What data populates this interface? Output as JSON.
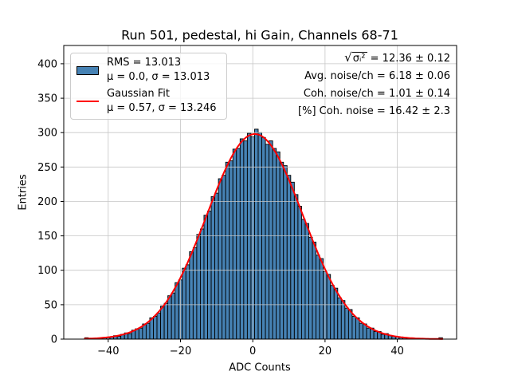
{
  "chart_data": {
    "type": "bar",
    "subtype": "histogram-with-gaussian-fit",
    "title": "Run 501, pedestal, hi Gain, Channels 68-71",
    "xlabel": "ADC Counts",
    "ylabel": "Entries",
    "xlim": [
      -52.3,
      56.4
    ],
    "ylim": [
      0,
      426.6
    ],
    "grid": true,
    "grid_color": "#c6c6c6",
    "background": "#ffffff",
    "legend_position": "upper left",
    "xticks": {
      "values": [
        -40,
        -20,
        0,
        20,
        40
      ],
      "labels": [
        "−40",
        "−20",
        "0",
        "20",
        "40"
      ]
    },
    "yticks": {
      "values": [
        0,
        50,
        100,
        150,
        200,
        250,
        300,
        350,
        400
      ],
      "labels": [
        "0",
        "50",
        "100",
        "150",
        "200",
        "250",
        "300",
        "350",
        "400"
      ]
    },
    "histogram": {
      "bin_start": -46,
      "bin_width": 1,
      "fill_color": "#4682b4",
      "edge_color": "#000000",
      "counts": [
        2,
        0,
        0,
        1,
        1,
        2,
        2,
        3,
        5,
        4,
        7,
        9,
        8,
        13,
        15,
        16,
        22,
        23,
        31,
        33,
        38,
        48,
        52,
        63,
        67,
        82,
        86,
        103,
        108,
        127,
        133,
        152,
        160,
        180,
        186,
        207,
        212,
        233,
        238,
        257,
        259,
        276,
        277,
        291,
        288,
        299,
        294,
        305,
        300,
        293,
        283,
        288,
        277,
        272,
        257,
        252,
        238,
        228,
        210,
        193,
        174,
        168,
        148,
        141,
        122,
        117,
        98,
        94,
        78,
        74,
        60,
        56,
        45,
        43,
        33,
        31,
        23,
        22,
        16,
        16,
        11,
        11,
        7,
        8,
        5,
        4,
        3,
        3,
        2,
        1,
        1,
        1,
        0,
        0,
        0,
        0,
        0,
        0,
        2
      ]
    },
    "gaussian_fit": {
      "amplitude": 298,
      "mu": 0.57,
      "sigma": 13.246,
      "color": "#ff0000",
      "line_width": 2,
      "x_range": [
        -46.5,
        52.5
      ]
    },
    "stats": {
      "rms": 13.013,
      "hist_mu": 0.0,
      "hist_sigma": 13.013,
      "fit_mu": 0.57,
      "fit_sigma": 13.246,
      "sqrt_sigma_i_squared": "12.36 ± 0.12",
      "avg_noise_per_ch": "6.18 ± 0.06",
      "coh_noise_per_ch": "1.01 ± 0.14",
      "pct_coh_noise": "16.42 ± 2.3"
    }
  },
  "legend": {
    "hist_line1": "RMS = 13.013",
    "hist_line2": "μ = 0.0, σ = 13.013",
    "fit_line1": "Gaussian Fit",
    "fit_line2": "μ = 0.57, σ = 13.246"
  },
  "annotations": {
    "radical": "√",
    "radical_expr": "σᵢ²",
    "radical_rest": " = 12.36 ± 0.12",
    "line2": "Avg. noise/ch = 6.18 ± 0.06",
    "line3": "Coh. noise/ch = 1.01 ± 0.14",
    "line4": "[%] Coh. noise = 16.42 ± 2.3"
  }
}
